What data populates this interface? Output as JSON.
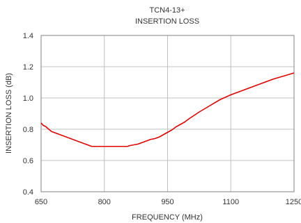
{
  "chart_data": {
    "type": "line",
    "title": "TCN4-13+",
    "subtitle": "INSERTION LOSS",
    "xlabel": "FREQUENCY (MHz)",
    "ylabel": "INSERTION LOSS (dB)",
    "xlim": [
      650,
      1250
    ],
    "ylim": [
      0.4,
      1.4
    ],
    "xticks": [
      650,
      800,
      950,
      1100,
      1250
    ],
    "yticks": [
      0.4,
      0.6,
      0.8,
      1.0,
      1.2,
      1.4
    ],
    "xtick_labels": [
      "650",
      "800",
      "950",
      "1100",
      "1250"
    ],
    "ytick_labels": [
      "0.4",
      "0.6",
      "0.8",
      "1.0",
      "1.2",
      "1.4"
    ],
    "grid": true,
    "series": [
      {
        "color": "#e00000",
        "x": [
          650,
          655,
          662,
          668,
          675,
          690,
          710,
          730,
          750,
          770,
          780,
          800,
          820,
          840,
          855,
          860,
          870,
          880,
          890,
          900,
          910,
          920,
          930,
          940,
          950,
          960,
          970,
          980,
          990,
          1000,
          1025,
          1050,
          1075,
          1100,
          1125,
          1150,
          1175,
          1200,
          1225,
          1250
        ],
        "y": [
          0.84,
          0.825,
          0.815,
          0.8,
          0.785,
          0.77,
          0.75,
          0.73,
          0.71,
          0.69,
          0.69,
          0.69,
          0.69,
          0.69,
          0.69,
          0.695,
          0.7,
          0.705,
          0.715,
          0.725,
          0.735,
          0.74,
          0.75,
          0.765,
          0.78,
          0.795,
          0.815,
          0.83,
          0.845,
          0.865,
          0.91,
          0.95,
          0.99,
          1.02,
          1.045,
          1.07,
          1.095,
          1.12,
          1.14,
          1.16
        ]
      }
    ]
  }
}
